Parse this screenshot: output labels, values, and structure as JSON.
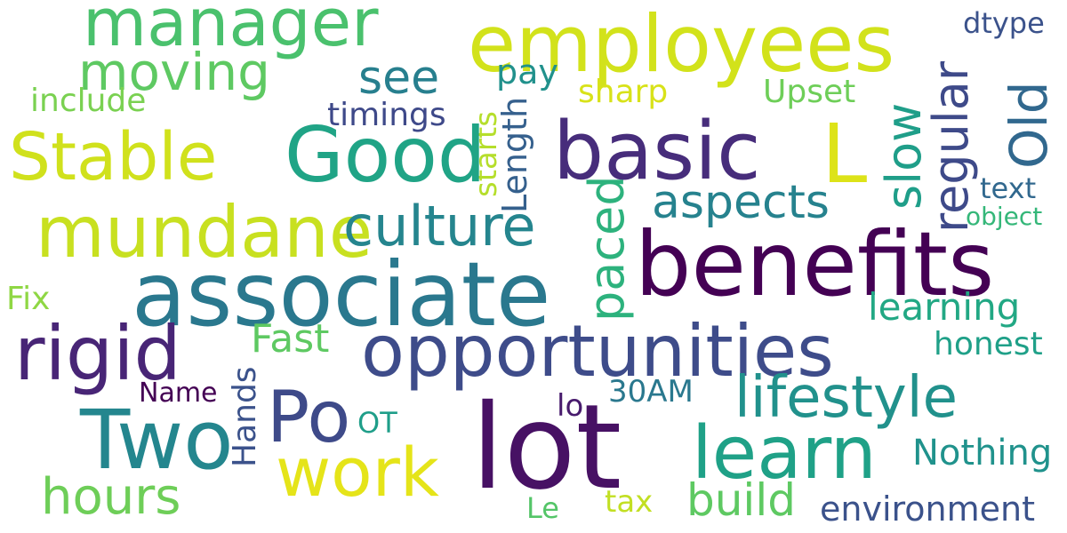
{
  "word_cloud": {
    "background": "#ffffff",
    "words": [
      {
        "text": "manager",
        "color": "#4ac16d"
      },
      {
        "text": "employees",
        "color": "#d2e21b"
      },
      {
        "text": "moving",
        "color": "#5ec962"
      },
      {
        "text": "see",
        "color": "#277f8e"
      },
      {
        "text": "regular",
        "color": "#3e4a89"
      },
      {
        "text": "dtype",
        "color": "#3b528b"
      },
      {
        "text": "Old",
        "color": "#31688e"
      },
      {
        "text": "include",
        "color": "#7ad151"
      },
      {
        "text": "pay",
        "color": "#21918c"
      },
      {
        "text": "sharp",
        "color": "#d8e219"
      },
      {
        "text": "Upset",
        "color": "#6ece58"
      },
      {
        "text": "timings",
        "color": "#3e4989"
      },
      {
        "text": "starts",
        "color": "#b5de2b"
      },
      {
        "text": "Length",
        "color": "#35608d"
      },
      {
        "text": "slow",
        "color": "#1f9e89"
      },
      {
        "text": "Stable",
        "color": "#d0e11c"
      },
      {
        "text": "Good",
        "color": "#20a486"
      },
      {
        "text": "basic",
        "color": "#472d7b"
      },
      {
        "text": "L",
        "color": "#dde318"
      },
      {
        "text": "text",
        "color": "#31688e"
      },
      {
        "text": "object",
        "color": "#35b779"
      },
      {
        "text": "aspects",
        "color": "#26828e"
      },
      {
        "text": "mundane",
        "color": "#c8e020"
      },
      {
        "text": "culture",
        "color": "#25858e"
      },
      {
        "text": "paced",
        "color": "#2db27d"
      },
      {
        "text": "benefits",
        "color": "#440154"
      },
      {
        "text": "associate",
        "color": "#2a788e"
      },
      {
        "text": "Fix",
        "color": "#8fd744"
      },
      {
        "text": "learning",
        "color": "#22a884"
      },
      {
        "text": "rigid",
        "color": "#482576"
      },
      {
        "text": "Fast",
        "color": "#5ec962"
      },
      {
        "text": "opportunities",
        "color": "#3e4c8a"
      },
      {
        "text": "honest",
        "color": "#1fa088"
      },
      {
        "text": "Name",
        "color": "#440154"
      },
      {
        "text": "Hands",
        "color": "#3b528b"
      },
      {
        "text": "30AM",
        "color": "#2a788e"
      },
      {
        "text": "lifestyle",
        "color": "#21918c"
      },
      {
        "text": "Po",
        "color": "#3e4a89"
      },
      {
        "text": "lo",
        "color": "#481b6d"
      },
      {
        "text": "Two",
        "color": "#24868e"
      },
      {
        "text": "OT",
        "color": "#1f9e89"
      },
      {
        "text": "lot",
        "color": "#471164"
      },
      {
        "text": "learn",
        "color": "#1fa187"
      },
      {
        "text": "work",
        "color": "#e5e419"
      },
      {
        "text": "Nothing",
        "color": "#20928c"
      },
      {
        "text": "hours",
        "color": "#6ece58"
      },
      {
        "text": "build",
        "color": "#5ec962"
      },
      {
        "text": "environment",
        "color": "#3b528b"
      },
      {
        "text": "tax",
        "color": "#c2df23"
      },
      {
        "text": "Le",
        "color": "#54c568"
      }
    ]
  }
}
